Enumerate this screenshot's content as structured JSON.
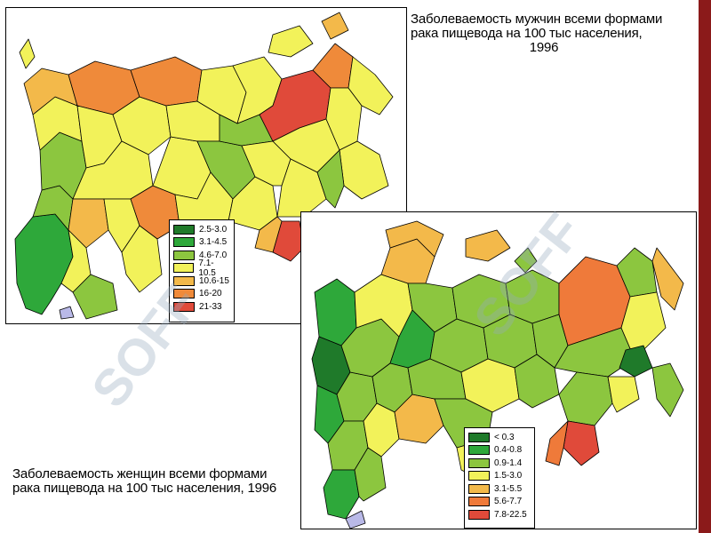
{
  "titles": {
    "men_line1": "Заболеваемость мужчин всеми формами",
    "men_line2": "рака пищевода на 100 тыс населения,",
    "men_year": "1996",
    "women_line1": "Заболеваемость женщин всеми формами",
    "women_line2": "рака пищевода на 100 тыс населения, 1996"
  },
  "legend_men": [
    {
      "label": "2.5-3.0",
      "color": "#1f7a2a"
    },
    {
      "label": "3.1-4.5",
      "color": "#2ea83a"
    },
    {
      "label": "4.6-7.0",
      "color": "#8cc63f"
    },
    {
      "label": "7.1-10.5",
      "color": "#f2f25a"
    },
    {
      "label": "10.6-15",
      "color": "#f3b94a"
    },
    {
      "label": "16-20",
      "color": "#ef8a3a"
    },
    {
      "label": "21-33",
      "color": "#e04a3a"
    }
  ],
  "legend_women": [
    {
      "label": "< 0.3",
      "color": "#1f7a2a"
    },
    {
      "label": "0.4-0.8",
      "color": "#2ea83a"
    },
    {
      "label": "0.9-1.4",
      "color": "#8cc63f"
    },
    {
      "label": "1.5-3.0",
      "color": "#f2f25a"
    },
    {
      "label": "3.1-5.5",
      "color": "#f3b94a"
    },
    {
      "label": "5.6-7.7",
      "color": "#ef7a3a"
    },
    {
      "label": "7.8-22.5",
      "color": "#e04a3a"
    }
  ],
  "watermark": "SOFF"
}
